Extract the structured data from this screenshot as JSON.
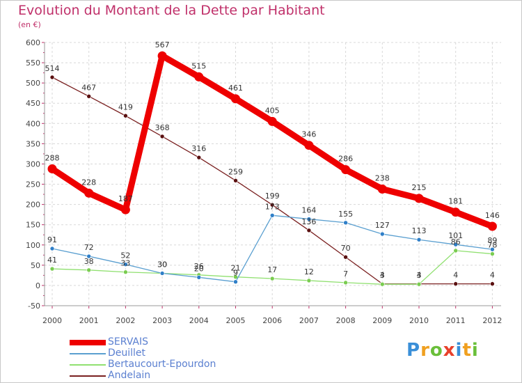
{
  "title": "Evolution du Montant de la Dette par Habitant",
  "subtitle": "(en €)",
  "logo": {
    "letters": [
      "P",
      "r",
      "o",
      "x",
      "i",
      "t",
      "i"
    ],
    "colors": [
      "#3a8fd8",
      "#f0a020",
      "#6abf3a",
      "#e8402a",
      "#3a8fd8",
      "#f0a020",
      "#6abf3a"
    ]
  },
  "chart_data": {
    "type": "line",
    "title": "Evolution du Montant de la Dette par Habitant",
    "subtitle": "(en €)",
    "x": [
      "2000",
      "2001",
      "2002",
      "2003",
      "2004",
      "2005",
      "2006",
      "2007",
      "2008",
      "2009",
      "2010",
      "2011",
      "2012"
    ],
    "ylim": [
      -50,
      600
    ],
    "yticks": [
      -50,
      0,
      50,
      100,
      150,
      200,
      250,
      300,
      350,
      400,
      450,
      500,
      550,
      600
    ],
    "grid": true,
    "legend_position": "bottom-left",
    "series": [
      {
        "name": "SERVAIS",
        "color": "#ee0000",
        "values": [
          288,
          228,
          187,
          567,
          515,
          461,
          405,
          346,
          286,
          238,
          215,
          181,
          146
        ]
      },
      {
        "name": "Deuillet",
        "color": "#5a9fd0",
        "values": [
          91,
          72,
          52,
          30,
          20,
          9,
          173,
          164,
          155,
          127,
          113,
          101,
          89
        ]
      },
      {
        "name": "Bertaucourt-Epourdon",
        "color": "#90e070",
        "values": [
          41,
          38,
          33,
          30,
          26,
          21,
          17,
          12,
          7,
          3,
          3,
          86,
          78
        ]
      },
      {
        "name": "Andelain",
        "color": "#7a2020",
        "values": [
          514,
          467,
          419,
          368,
          316,
          259,
          199,
          136,
          70,
          4,
          4,
          4,
          4
        ]
      }
    ]
  }
}
